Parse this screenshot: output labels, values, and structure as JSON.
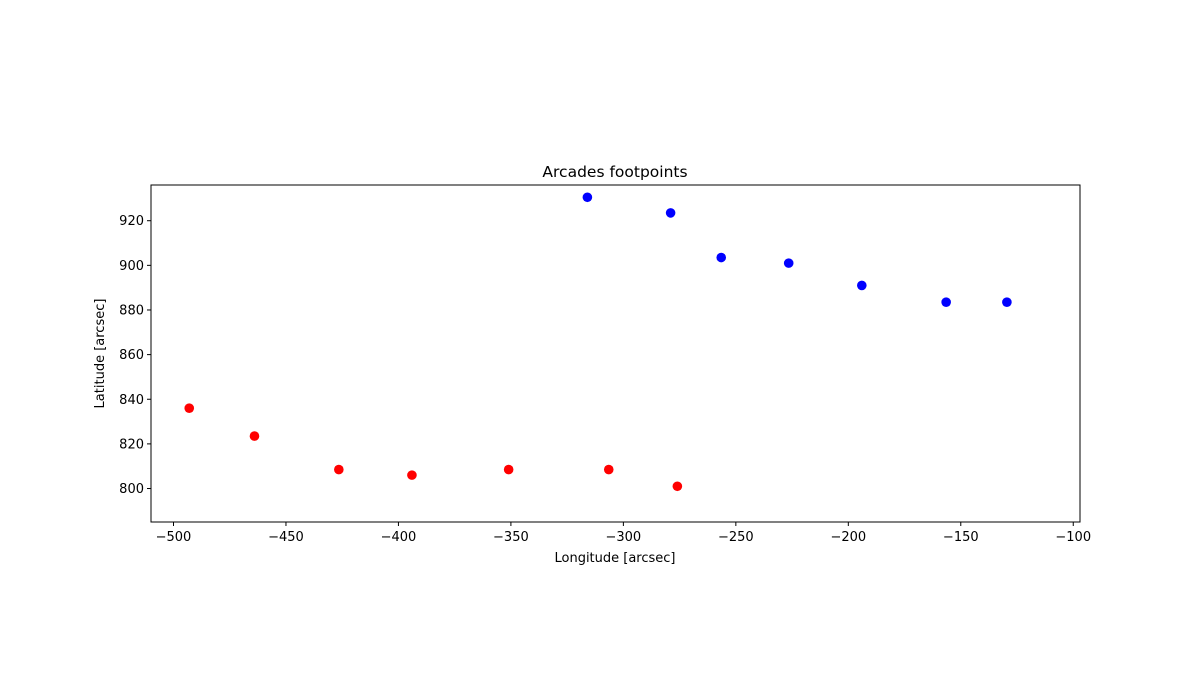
{
  "chart_data": {
    "type": "scatter",
    "title": "Arcades footpoints",
    "xlabel": "Longitude [arcsec]",
    "ylabel": "Latitude [arcsec]",
    "xlim": [
      -510,
      -97
    ],
    "ylim": [
      785,
      936
    ],
    "xticks": [
      -500,
      -450,
      -400,
      -350,
      -300,
      -250,
      -200,
      -150,
      -100
    ],
    "yticks": [
      800,
      820,
      840,
      860,
      880,
      900,
      920
    ],
    "grid": false,
    "series": [
      {
        "name": "blue footpoints",
        "color": "#0000ff",
        "points": [
          [
            -316,
            930.5
          ],
          [
            -279,
            923.5
          ],
          [
            -256.5,
            903.5
          ],
          [
            -226.5,
            901
          ],
          [
            -194,
            891
          ],
          [
            -156.5,
            883.5
          ],
          [
            -129.5,
            883.5
          ]
        ]
      },
      {
        "name": "red footpoints",
        "color": "#ff0000",
        "points": [
          [
            -493,
            836
          ],
          [
            -464,
            823.5
          ],
          [
            -426.5,
            808.5
          ],
          [
            -394,
            806
          ],
          [
            -351,
            808.5
          ],
          [
            -306.5,
            808.5
          ],
          [
            -276,
            801
          ]
        ]
      }
    ]
  }
}
